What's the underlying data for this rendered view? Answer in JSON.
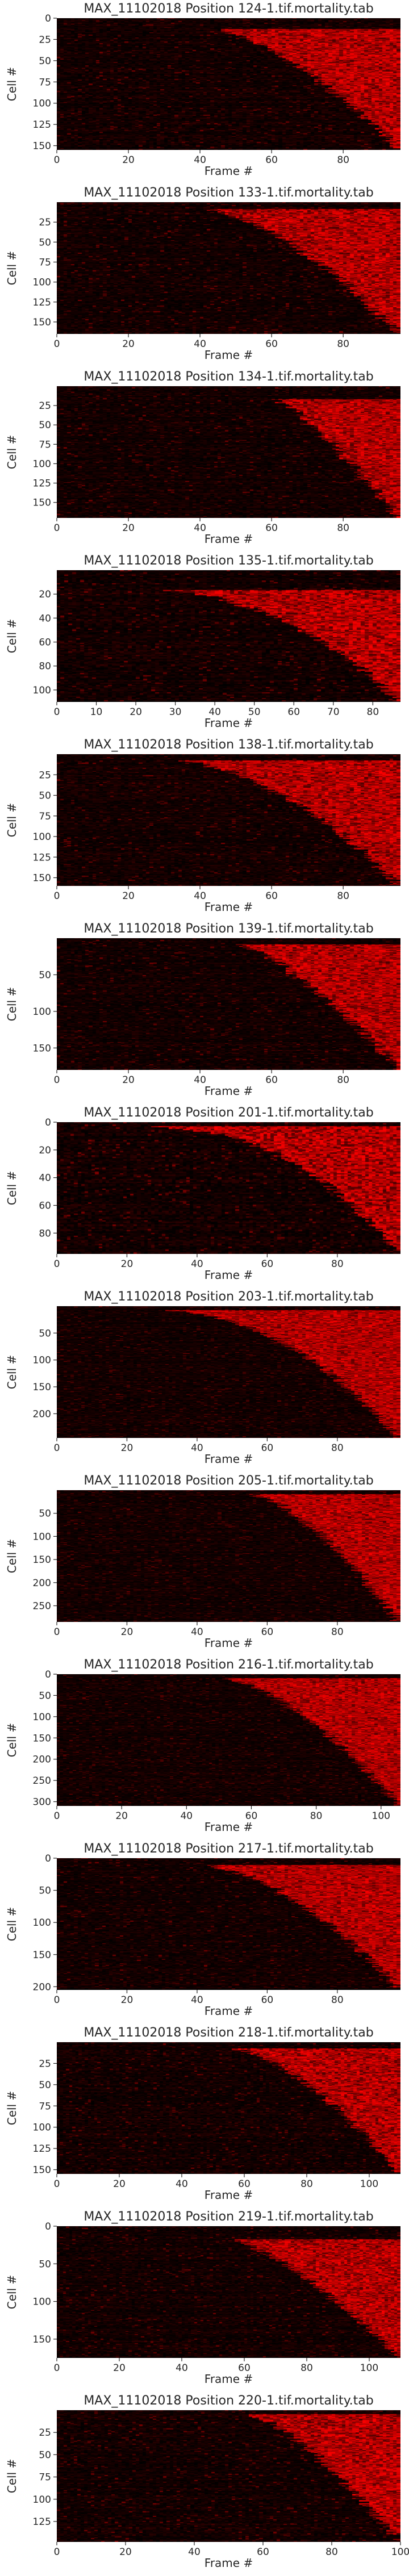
{
  "chart_data": [
    {
      "type": "heatmap",
      "title": "MAX_11102018 Position 124-1.tif.mortality.tab",
      "xlabel": "Frame #",
      "ylabel": "Cell #",
      "xlim": [
        0,
        96
      ],
      "ylim": [
        0,
        155
      ],
      "xticks": [
        0,
        20,
        40,
        60,
        80
      ],
      "yticks": [
        0,
        25,
        50,
        75,
        100,
        125,
        150
      ],
      "onset": {
        "first_frame": 43,
        "last_frame": 95,
        "first_cell_fraction": 0.08,
        "curve": 1.5
      },
      "colormap": [
        "#000000",
        "#ff0000"
      ],
      "grid": false,
      "legend": "none"
    },
    {
      "type": "heatmap",
      "title": "MAX_11102018 Position 133-1.tif.mortality.tab",
      "xlabel": "Frame #",
      "ylabel": "Cell #",
      "xlim": [
        0,
        96
      ],
      "ylim": [
        0,
        165
      ],
      "xticks": [
        0,
        20,
        40,
        60,
        80
      ],
      "yticks": [
        25,
        50,
        75,
        100,
        125,
        150
      ],
      "onset": {
        "first_frame": 40,
        "last_frame": 95,
        "first_cell_fraction": 0.05,
        "curve": 1.6
      },
      "colormap": [
        "#000000",
        "#ff0000"
      ],
      "grid": false,
      "legend": "none"
    },
    {
      "type": "heatmap",
      "title": "MAX_11102018 Position 134-1.tif.mortality.tab",
      "xlabel": "Frame #",
      "ylabel": "Cell #",
      "xlim": [
        0,
        96
      ],
      "ylim": [
        0,
        170
      ],
      "xticks": [
        0,
        20,
        40,
        60,
        80
      ],
      "yticks": [
        25,
        50,
        75,
        100,
        125,
        150
      ],
      "onset": {
        "first_frame": 60,
        "last_frame": 95,
        "first_cell_fraction": 0.1,
        "curve": 1.3
      },
      "colormap": [
        "#000000",
        "#ff0000"
      ],
      "grid": false,
      "legend": "none"
    },
    {
      "type": "heatmap",
      "title": "MAX_11102018 Position 135-1.tif.mortality.tab",
      "xlabel": "Frame #",
      "ylabel": "Cell #",
      "xlim": [
        0,
        87
      ],
      "ylim": [
        0,
        110
      ],
      "xticks": [
        0,
        10,
        20,
        30,
        40,
        50,
        60,
        70,
        80
      ],
      "yticks": [
        20,
        40,
        60,
        80,
        100
      ],
      "onset": {
        "first_frame": 20,
        "last_frame": 86,
        "first_cell_fraction": 0.15,
        "curve": 2.2
      },
      "colormap": [
        "#000000",
        "#ff0000"
      ],
      "grid": false,
      "legend": "none"
    },
    {
      "type": "heatmap",
      "title": "MAX_11102018 Position 138-1.tif.mortality.tab",
      "xlabel": "Frame #",
      "ylabel": "Cell #",
      "xlim": [
        0,
        96
      ],
      "ylim": [
        0,
        160
      ],
      "xticks": [
        0,
        20,
        40,
        60,
        80
      ],
      "yticks": [
        25,
        50,
        75,
        100,
        125,
        150
      ],
      "onset": {
        "first_frame": 32,
        "last_frame": 95,
        "first_cell_fraction": 0.05,
        "curve": 1.8
      },
      "colormap": [
        "#000000",
        "#ff0000"
      ],
      "grid": false,
      "legend": "none"
    },
    {
      "type": "heatmap",
      "title": "MAX_11102018 Position 139-1.tif.mortality.tab",
      "xlabel": "Frame #",
      "ylabel": "Cell #",
      "xlim": [
        0,
        96
      ],
      "ylim": [
        0,
        180
      ],
      "xticks": [
        0,
        20,
        40,
        60,
        80
      ],
      "yticks": [
        50,
        100,
        150
      ],
      "onset": {
        "first_frame": 50,
        "last_frame": 95,
        "first_cell_fraction": 0.05,
        "curve": 1.4
      },
      "colormap": [
        "#000000",
        "#ff0000"
      ],
      "grid": false,
      "legend": "none"
    },
    {
      "type": "heatmap",
      "title": "MAX_11102018 Position 201-1.tif.mortality.tab",
      "xlabel": "Frame #",
      "ylabel": "Cell #",
      "xlim": [
        0,
        98
      ],
      "ylim": [
        0,
        95
      ],
      "xticks": [
        0,
        20,
        40,
        60,
        80
      ],
      "yticks": [
        0,
        20,
        40,
        60,
        80
      ],
      "onset": {
        "first_frame": 18,
        "last_frame": 97,
        "first_cell_fraction": 0.03,
        "curve": 2.6
      },
      "colormap": [
        "#000000",
        "#ff0000"
      ],
      "grid": false,
      "legend": "none"
    },
    {
      "type": "heatmap",
      "title": "MAX_11102018 Position 203-1.tif.mortality.tab",
      "xlabel": "Frame #",
      "ylabel": "Cell #",
      "xlim": [
        0,
        98
      ],
      "ylim": [
        0,
        245
      ],
      "xticks": [
        0,
        20,
        40,
        60,
        80
      ],
      "yticks": [
        50,
        100,
        150,
        200
      ],
      "onset": {
        "first_frame": 25,
        "last_frame": 97,
        "first_cell_fraction": 0.03,
        "curve": 2.2
      },
      "colormap": [
        "#000000",
        "#ff0000"
      ],
      "grid": false,
      "legend": "none"
    },
    {
      "type": "heatmap",
      "title": "MAX_11102018 Position 205-1.tif.mortality.tab",
      "xlabel": "Frame #",
      "ylabel": "Cell #",
      "xlim": [
        0,
        98
      ],
      "ylim": [
        0,
        285
      ],
      "xticks": [
        0,
        20,
        40,
        60,
        80
      ],
      "yticks": [
        50,
        100,
        150,
        200,
        250
      ],
      "onset": {
        "first_frame": 55,
        "last_frame": 97,
        "first_cell_fraction": 0.03,
        "curve": 1.5
      },
      "colormap": [
        "#000000",
        "#ff0000"
      ],
      "grid": false,
      "legend": "none"
    },
    {
      "type": "heatmap",
      "title": "MAX_11102018 Position 216-1.tif.mortality.tab",
      "xlabel": "Frame #",
      "ylabel": "Cell #",
      "xlim": [
        0,
        106
      ],
      "ylim": [
        0,
        310
      ],
      "xticks": [
        0,
        20,
        40,
        60,
        80,
        100
      ],
      "yticks": [
        0,
        50,
        100,
        150,
        200,
        250,
        300
      ],
      "onset": {
        "first_frame": 50,
        "last_frame": 105,
        "first_cell_fraction": 0.03,
        "curve": 1.6
      },
      "colormap": [
        "#000000",
        "#ff0000"
      ],
      "grid": false,
      "legend": "none"
    },
    {
      "type": "heatmap",
      "title": "MAX_11102018 Position 217-1.tif.mortality.tab",
      "xlabel": "Frame #",
      "ylabel": "Cell #",
      "xlim": [
        0,
        98
      ],
      "ylim": [
        0,
        205
      ],
      "xticks": [
        0,
        20,
        40,
        60,
        80
      ],
      "yticks": [
        0,
        50,
        100,
        150,
        200
      ],
      "onset": {
        "first_frame": 38,
        "last_frame": 97,
        "first_cell_fraction": 0.05,
        "curve": 1.8
      },
      "colormap": [
        "#000000",
        "#ff0000"
      ],
      "grid": false,
      "legend": "none"
    },
    {
      "type": "heatmap",
      "title": "MAX_11102018 Position 218-1.tif.mortality.tab",
      "xlabel": "Frame #",
      "ylabel": "Cell #",
      "xlim": [
        0,
        110
      ],
      "ylim": [
        0,
        155
      ],
      "xticks": [
        0,
        20,
        40,
        60,
        80,
        100
      ],
      "yticks": [
        25,
        50,
        75,
        100,
        125,
        150
      ],
      "onset": {
        "first_frame": 55,
        "last_frame": 109,
        "first_cell_fraction": 0.05,
        "curve": 1.6
      },
      "colormap": [
        "#000000",
        "#ff0000"
      ],
      "grid": false,
      "legend": "none"
    },
    {
      "type": "heatmap",
      "title": "MAX_11102018 Position 219-1.tif.mortality.tab",
      "xlabel": "Frame #",
      "ylabel": "Cell #",
      "xlim": [
        0,
        110
      ],
      "ylim": [
        0,
        175
      ],
      "xticks": [
        0,
        20,
        40,
        60,
        80,
        100
      ],
      "yticks": [
        0,
        50,
        100,
        150
      ],
      "onset": {
        "first_frame": 55,
        "last_frame": 109,
        "first_cell_fraction": 0.1,
        "curve": 1.4
      },
      "colormap": [
        "#000000",
        "#ff0000"
      ],
      "grid": false,
      "legend": "none"
    },
    {
      "type": "heatmap",
      "title": "MAX_11102018 Position 220-1.tif.mortality.tab",
      "xlabel": "Frame #",
      "ylabel": "Cell #",
      "xlim": [
        0,
        100
      ],
      "ylim": [
        0,
        148
      ],
      "xticks": [
        0,
        20,
        40,
        60,
        80,
        100
      ],
      "yticks": [
        25,
        50,
        75,
        100,
        125
      ],
      "onset": {
        "first_frame": 55,
        "last_frame": 99,
        "first_cell_fraction": 0.03,
        "curve": 1.4
      },
      "colormap": [
        "#000000",
        "#ff0000"
      ],
      "grid": false,
      "legend": "none"
    }
  ]
}
